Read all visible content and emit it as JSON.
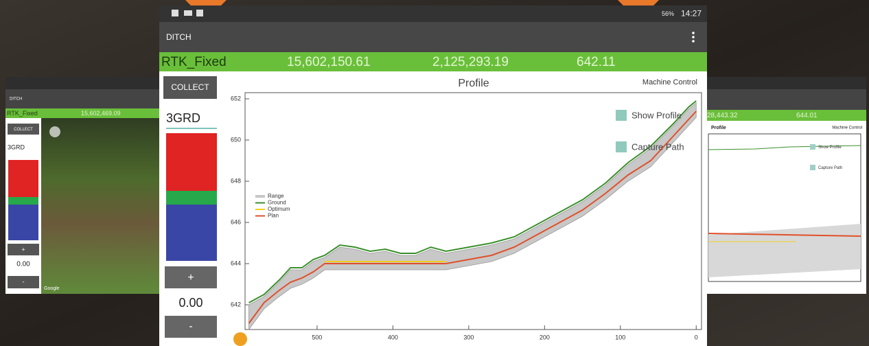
{
  "main_screen": {
    "status": {
      "battery": "56%",
      "time": "14:27"
    },
    "app_title": "DITCH",
    "gnss": {
      "status": "RTK_Fixed",
      "northing": "15,602,150.61",
      "easting": "2,125,293.19",
      "elevation": "642.11"
    },
    "collect_button": "COLLECT",
    "surface": "3GRD",
    "plus_button": "+",
    "offset": "0.00",
    "minus_button": "-",
    "mode": "Machine Control",
    "checkboxes": [
      "Show Profile",
      "Capture Path"
    ]
  },
  "chart_data": {
    "type": "line",
    "title": "Profile",
    "x": [
      590,
      570,
      550,
      535,
      520,
      505,
      490,
      470,
      450,
      430,
      410,
      390,
      370,
      350,
      330,
      300,
      270,
      240,
      210,
      180,
      150,
      120,
      90,
      60,
      30,
      10,
      0
    ],
    "series": [
      {
        "name": "Range",
        "color": "#c8c8c8",
        "band": true,
        "low": [
          640.8,
          641.8,
          642.4,
          642.8,
          643.0,
          643.3,
          643.7,
          643.7,
          643.7,
          643.7,
          643.7,
          643.7,
          643.7,
          643.7,
          643.7,
          643.9,
          644.1,
          644.5,
          645.1,
          645.7,
          646.3,
          647.1,
          648.0,
          648.7,
          649.9,
          650.7,
          651.1
        ],
        "high": [
          642.0,
          642.4,
          643.1,
          643.7,
          643.7,
          644.1,
          644.3,
          644.8,
          644.7,
          644.5,
          644.6,
          644.4,
          644.4,
          644.7,
          644.5,
          644.7,
          644.9,
          645.2,
          645.8,
          646.4,
          647.0,
          647.8,
          648.8,
          649.6,
          650.7,
          651.5,
          651.8
        ]
      },
      {
        "name": "Ground",
        "color": "#3a8f2a",
        "values": [
          642.1,
          642.5,
          643.2,
          643.8,
          643.8,
          644.2,
          644.4,
          644.9,
          644.8,
          644.6,
          644.7,
          644.5,
          644.5,
          644.8,
          644.6,
          644.8,
          645.0,
          645.3,
          645.9,
          646.5,
          647.1,
          647.9,
          648.9,
          649.7,
          650.8,
          651.6,
          651.9
        ]
      },
      {
        "name": "Optimum",
        "color": "#f2cf1d",
        "values": [
          null,
          null,
          null,
          null,
          null,
          null,
          644.1,
          644.1,
          644.1,
          644.1,
          644.1,
          644.1,
          644.1,
          644.1,
          644.1,
          null,
          null,
          null,
          null,
          null,
          null,
          null,
          null,
          null,
          null,
          null,
          null
        ]
      },
      {
        "name": "Plan",
        "color": "#e0502a",
        "values": [
          641.1,
          642.1,
          642.7,
          643.1,
          643.3,
          643.6,
          644.0,
          644.0,
          644.0,
          644.0,
          644.0,
          644.0,
          644.0,
          644.0,
          644.0,
          644.2,
          644.4,
          644.8,
          645.4,
          646.0,
          646.6,
          647.4,
          648.3,
          649.0,
          650.2,
          651.0,
          651.4
        ]
      }
    ],
    "xlim": [
      595,
      -7
    ],
    "ylim": [
      640.8,
      652.3
    ],
    "xticks": [
      500,
      400,
      300,
      200,
      100,
      0
    ],
    "yticks": [
      642,
      644,
      646,
      648,
      650,
      652
    ]
  },
  "left_screen": {
    "app_title": "DITCH",
    "gnss_status": "RTK_Fixed",
    "northing": "15,602,469.09",
    "collect_button": "COLLECT",
    "surface": "3GRD",
    "plus_button": "+",
    "offset": "0.00",
    "minus_button": "-",
    "map_credit": "Google"
  },
  "right_screen": {
    "easting": "28,443.32",
    "elevation": "644.01",
    "title": "Profile",
    "mode": "Machine Control",
    "checkboxes": [
      "Show Profile",
      "Capture Path"
    ]
  }
}
